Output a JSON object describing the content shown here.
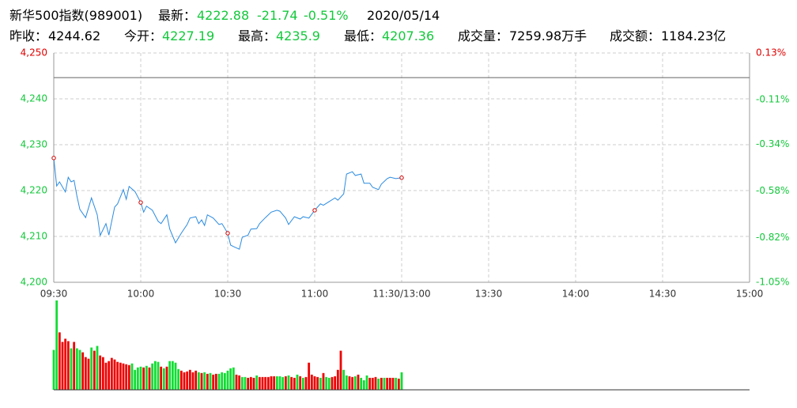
{
  "header": {
    "title": "新华500指数(989001)",
    "latest_label": "最新：",
    "latest": "4222.88",
    "change": "-21.74",
    "change_pct": "-0.51%",
    "date": "2020/05/14",
    "stats": [
      {
        "label": "昨收：",
        "value": "4244.62"
      },
      {
        "label": "今开：",
        "value": "4227.19"
      },
      {
        "label": "最高：",
        "value": "4235.9"
      },
      {
        "label": "最低：",
        "value": "4207.36"
      },
      {
        "label": "成交量：",
        "value": "7259.98万手"
      },
      {
        "label": "成交额：",
        "value": "1184.23亿"
      }
    ]
  },
  "chart_data": [
    {
      "type": "line",
      "color": "#2a8be0",
      "up_color": "#e00000",
      "down_color": "#14c83c",
      "grid": true,
      "baseline": 4244.62,
      "x": [
        0,
        1,
        2,
        4,
        5,
        6,
        7,
        8,
        9,
        11,
        13,
        15,
        16,
        18,
        19,
        21,
        22,
        24,
        25,
        26,
        28,
        30,
        31,
        32,
        34,
        36,
        37,
        39,
        40,
        42,
        44,
        46,
        47,
        49,
        50,
        51,
        52,
        53,
        55,
        57,
        58,
        60,
        61,
        62,
        64,
        65,
        67,
        68,
        70,
        71,
        73,
        75,
        77,
        78,
        80,
        81,
        83,
        85,
        86,
        88,
        90,
        92,
        93,
        95,
        97,
        98,
        100,
        101,
        103,
        104,
        106,
        107,
        109,
        110,
        112,
        113,
        115,
        116,
        118,
        120
      ],
      "values": [
        4227.1,
        4221.0,
        4221.9,
        4219.7,
        4222.9,
        4221.9,
        4222.2,
        4218.8,
        4215.9,
        4214.1,
        4218.4,
        4214.7,
        4210.2,
        4212.8,
        4210.3,
        4216.4,
        4217.1,
        4220.2,
        4218.1,
        4220.9,
        4219.8,
        4217.4,
        4215.3,
        4216.6,
        4215.7,
        4213.3,
        4212.8,
        4214.7,
        4211.6,
        4208.6,
        4210.7,
        4212.6,
        4214.0,
        4214.3,
        4212.8,
        4213.6,
        4212.4,
        4214.7,
        4214.0,
        4212.6,
        4212.8,
        4210.7,
        4208.1,
        4207.8,
        4207.2,
        4209.8,
        4210.3,
        4211.6,
        4211.7,
        4212.8,
        4214.1,
        4215.3,
        4215.7,
        4215.5,
        4214.0,
        4212.6,
        4214.3,
        4213.8,
        4214.3,
        4214.0,
        4215.7,
        4217.1,
        4216.8,
        4217.6,
        4218.4,
        4217.9,
        4219.3,
        4223.6,
        4224.1,
        4223.3,
        4223.6,
        4221.6,
        4221.6,
        4220.7,
        4220.2,
        4221.4,
        4222.6,
        4222.9,
        4222.6,
        4222.8
      ],
      "xlim": [
        0,
        240
      ],
      "xticks": [
        {
          "value": 0,
          "label": "09:30"
        },
        {
          "value": 30,
          "label": "10:00"
        },
        {
          "value": 60,
          "label": "10:30"
        },
        {
          "value": 90,
          "label": "11:00"
        },
        {
          "value": 120,
          "label": "11:30/13:00"
        },
        {
          "value": 150,
          "label": "13:30"
        },
        {
          "value": 180,
          "label": "14:00"
        },
        {
          "value": 210,
          "label": "14:30"
        },
        {
          "value": 240,
          "label": "15:00"
        }
      ],
      "ylim": [
        4200,
        4250
      ],
      "yticks": [
        {
          "value": 4200,
          "label": "4,200"
        },
        {
          "value": 4210,
          "label": "4,210"
        },
        {
          "value": 4220,
          "label": "4,220"
        },
        {
          "value": 4230,
          "label": "4,230"
        },
        {
          "value": 4240,
          "label": "4,240"
        },
        {
          "value": 4250,
          "label": "4,250"
        }
      ],
      "y2lim": [
        -1.05,
        0.13
      ],
      "y2ticks": [
        {
          "value": -1.05,
          "label": "-1.05%"
        },
        {
          "value": -0.82,
          "label": "-0.82%"
        },
        {
          "value": -0.58,
          "label": "-0.58%"
        },
        {
          "value": -0.34,
          "label": "-0.34%"
        },
        {
          "value": -0.11,
          "label": "-0.11%"
        },
        {
          "value": 0.13,
          "label": "0.13%"
        }
      ]
    },
    {
      "type": "bar",
      "xlim": [
        0,
        240
      ],
      "values": [
        50,
        112,
        72,
        60,
        64,
        61,
        52,
        60,
        52,
        50,
        47,
        41,
        39,
        53,
        49,
        55,
        43,
        41,
        34,
        36,
        40,
        38,
        35,
        34,
        33,
        32,
        31,
        33,
        25,
        28,
        29,
        28,
        30,
        28,
        33,
        36,
        35,
        29,
        27,
        29,
        36,
        36,
        34,
        26,
        24,
        22,
        23,
        25,
        22,
        24,
        22,
        21,
        22,
        20,
        21,
        19,
        20,
        20,
        22,
        21,
        24,
        27,
        28,
        19,
        18,
        16,
        16,
        15,
        16,
        15,
        18,
        16,
        16,
        16,
        16,
        17,
        17,
        17,
        17,
        16,
        17,
        18,
        16,
        15,
        19,
        17,
        15,
        16,
        34,
        19,
        17,
        16,
        15,
        21,
        16,
        15,
        16,
        17,
        25,
        49,
        25,
        18,
        17,
        16,
        17,
        19,
        15,
        12,
        18,
        15,
        15,
        16,
        14,
        15,
        15,
        15,
        15,
        15,
        15,
        14,
        22
      ],
      "colors": [
        "#1d3",
        "#1d3",
        "#e00",
        "#e00",
        "#e00",
        "#e00",
        "#1d3",
        "#e00",
        "#1d3",
        "#1d3",
        "#e00",
        "#e00",
        "#e00",
        "#1d3",
        "#e00",
        "#1d3",
        "#e00",
        "#e00",
        "#e00",
        "#e00",
        "#e00",
        "#e00",
        "#e00",
        "#e00",
        "#e00",
        "#e00",
        "#e00",
        "#1d3",
        "#1d3",
        "#1d3",
        "#1d3",
        "#e00",
        "#1d3",
        "#e00",
        "#1d3",
        "#1d3",
        "#1d3",
        "#e00",
        "#1d3",
        "#e00",
        "#1d3",
        "#1d3",
        "#1d3",
        "#1d3",
        "#e00",
        "#e00",
        "#e00",
        "#e00",
        "#e00",
        "#e00",
        "#1d3",
        "#e00",
        "#1d3",
        "#e00",
        "#1d3",
        "#e00",
        "#e00",
        "#1d3",
        "#1d3",
        "#1d3",
        "#1d3",
        "#1d3",
        "#1d3",
        "#e00",
        "#e00",
        "#1d3",
        "#1d3",
        "#e00",
        "#e00",
        "#e00",
        "#1d3",
        "#e00",
        "#e00",
        "#e00",
        "#e00",
        "#e00",
        "#e00",
        "#1d3",
        "#1d3",
        "#1d3",
        "#e00",
        "#1d3",
        "#e00",
        "#e00",
        "#1d3",
        "#e00",
        "#1d3",
        "#e00",
        "#e00",
        "#e00",
        "#e00",
        "#e00",
        "#1d3",
        "#e00",
        "#1d3",
        "#1d3",
        "#e00",
        "#e00",
        "#e00",
        "#e00",
        "#1d3",
        "#1d3",
        "#e00",
        "#e00",
        "#1d3",
        "#e00",
        "#1d3",
        "#1d3",
        "#1d3",
        "#e00",
        "#e00",
        "#e00",
        "#1d3",
        "#e00",
        "#1d3",
        "#e00",
        "#e00",
        "#e00",
        "#1d3",
        "#e00",
        "#1d3"
      ]
    }
  ]
}
